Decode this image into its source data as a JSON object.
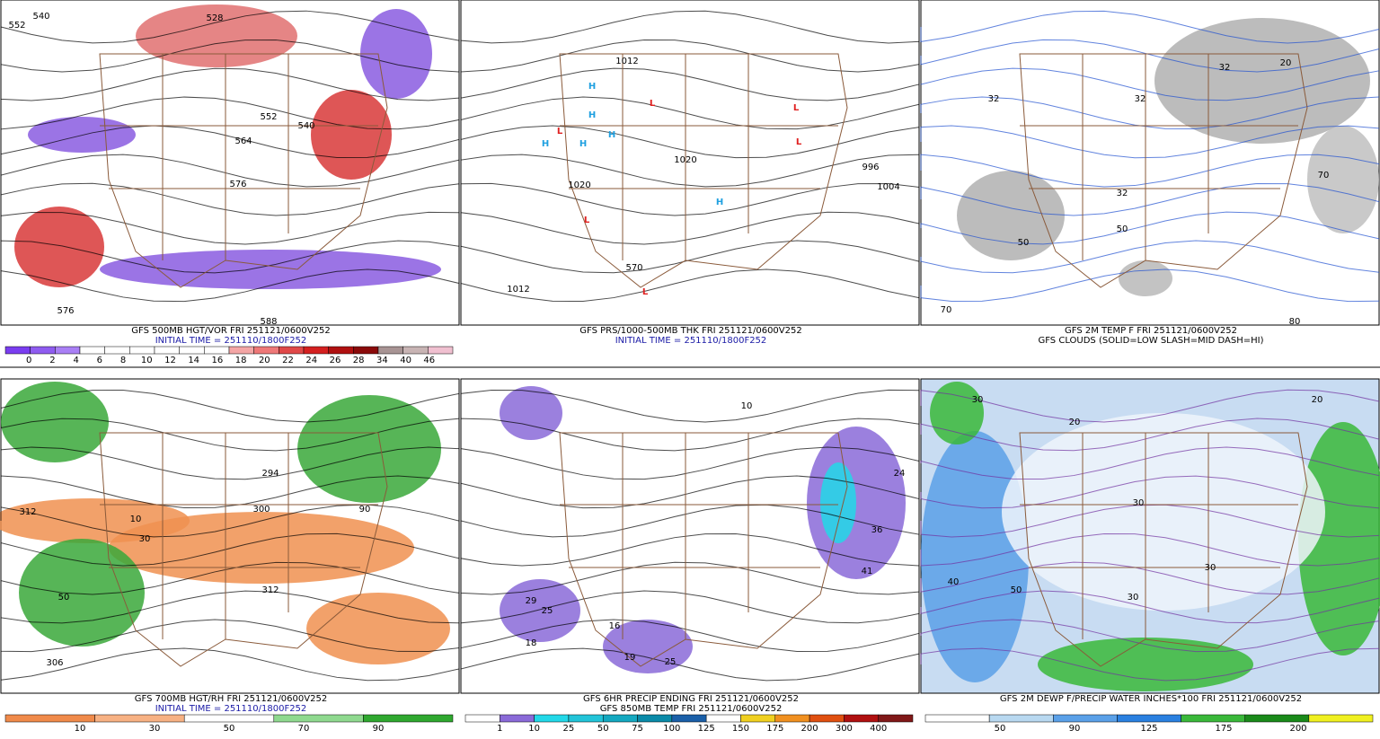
{
  "panels": [
    {
      "captions": [
        {
          "text": "GFS 500MB HGT/VOR FRI 251121/0600V252",
          "color": "#000000"
        },
        {
          "text": "INITIAL TIME = 251110/1800F252",
          "color": "#1a1aa6"
        }
      ],
      "map_labels": [
        "540",
        "528",
        "552",
        "552",
        "564",
        "576",
        "576",
        "588",
        "540"
      ],
      "colorbar": {
        "labels": [
          "0",
          "2",
          "4",
          "6",
          "8",
          "10",
          "12",
          "14",
          "16",
          "18",
          "20",
          "22",
          "24",
          "26",
          "28",
          "34",
          "40",
          "46"
        ],
        "colors": [
          "#7a3df0",
          "#8f5cf0",
          "#a97ff5",
          "#ffffff",
          "#ffffff",
          "#ffffff",
          "#ffffff",
          "#ffffff",
          "#ffffff",
          "#f4a6a6",
          "#ee7878",
          "#e04848",
          "#d42020",
          "#b01010",
          "#8a0a0a",
          "#a89494",
          "#c8b4b4",
          "#f0c0d0"
        ]
      }
    },
    {
      "captions": [
        {
          "text": "GFS PRS/1000-500MB THK FRI 251121/0600V252",
          "color": "#000000"
        },
        {
          "text": "INITIAL TIME = 251110/1800F252",
          "color": "#1a1aa6"
        }
      ],
      "map_labels": [
        "L",
        "L",
        "L",
        "L",
        "L",
        "L",
        "H",
        "H",
        "H",
        "H",
        "H",
        "H",
        "1012",
        "1020",
        "1020",
        "1004",
        "996",
        "1012",
        "570"
      ]
    },
    {
      "captions": [
        {
          "text": "GFS 2M TEMP F FRI 251121/0600V252",
          "color": "#000000"
        },
        {
          "text": "GFS CLOUDS (SOLID=LOW SLASH=MID DASH=HI)",
          "color": "#000000"
        }
      ],
      "map_labels": [
        "32",
        "32",
        "32",
        "32",
        "50",
        "50",
        "70",
        "70",
        "80",
        "20"
      ]
    },
    {
      "captions": [
        {
          "text": "GFS 700MB HGT/RH FRI 251121/0600V252",
          "color": "#000000"
        },
        {
          "text": "INITIAL TIME = 251110/1800F252",
          "color": "#1a1aa6"
        }
      ],
      "map_labels": [
        "312",
        "300",
        "294",
        "312",
        "306",
        "50",
        "90",
        "10",
        "30"
      ],
      "colorbar": {
        "labels": [
          "10",
          "30",
          "50",
          "70",
          "90"
        ],
        "colors": [
          "#f08a4a",
          "#f7b183",
          "#ffffff",
          "#8fd98f",
          "#2fa82f"
        ]
      }
    },
    {
      "captions": [
        {
          "text": "GFS 6HR PRECIP ENDING FRI 251121/0600V252",
          "color": "#000000"
        },
        {
          "text": "GFS 850MB TEMP FRI 251121/0600V252",
          "color": "#000000"
        }
      ],
      "map_labels": [
        "29",
        "25",
        "18",
        "16",
        "19",
        "25",
        "24",
        "36",
        "41",
        "10"
      ],
      "colorbar": {
        "labels": [
          "1",
          "10",
          "25",
          "50",
          "75",
          "100",
          "125",
          "150",
          "175",
          "200",
          "300",
          "400"
        ],
        "colors": [
          "#ffffff",
          "#8a6ad8",
          "#22d8e8",
          "#22c4d8",
          "#14a8c0",
          "#0a8aa8",
          "#1a5fa8",
          "#ffffff",
          "#f0d020",
          "#f09020",
          "#e05010",
          "#b01010",
          "#801818"
        ]
      }
    },
    {
      "captions": [
        {
          "text": "GFS 2M DEWP F/PRECIP WATER INCHES*100 FRI 251121/0600V252",
          "color": "#000000"
        }
      ],
      "map_labels": [
        "20",
        "20",
        "30",
        "30",
        "30",
        "30",
        "50",
        "40"
      ],
      "colorbar": {
        "labels": [
          "50",
          "90",
          "125",
          "175",
          "200"
        ],
        "colors": [
          "#ffffff",
          "#b8d8f0",
          "#5aa0e8",
          "#2a80e0",
          "#3ab83a",
          "#1a8a1a",
          "#f0f020"
        ]
      }
    }
  ]
}
